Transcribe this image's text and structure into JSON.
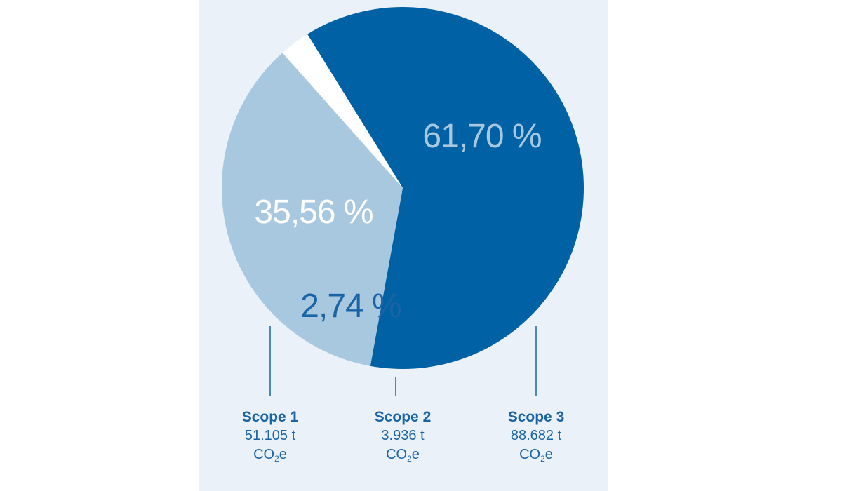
{
  "chart_data": {
    "type": "pie",
    "slices": [
      {
        "label": "Scope 1",
        "value": 35.56,
        "value_label": "35,56 %",
        "amount": "51.105 t",
        "unit": "CO",
        "unit_sub": "2",
        "unit_suffix": "e",
        "color": "#a8c8e0",
        "label_color": "#ffffff"
      },
      {
        "label": "Scope 2",
        "value": 2.74,
        "value_label": "2,74 %",
        "amount": "3.936 t",
        "unit": "CO",
        "unit_sub": "2",
        "unit_suffix": "e",
        "color": "#ffffff",
        "label_color": "#1a64a6"
      },
      {
        "label": "Scope 3",
        "value": 61.7,
        "value_label": "61,70 %",
        "amount": "88.682 t",
        "unit": "CO",
        "unit_sub": "2",
        "unit_suffix": "e",
        "color": "#0061a4",
        "label_color": "#a8c8e0"
      }
    ]
  },
  "colors": {
    "panel_background": "#eaf1f8",
    "accent": "#1a64a6",
    "leader_line": "#1a64a6"
  }
}
